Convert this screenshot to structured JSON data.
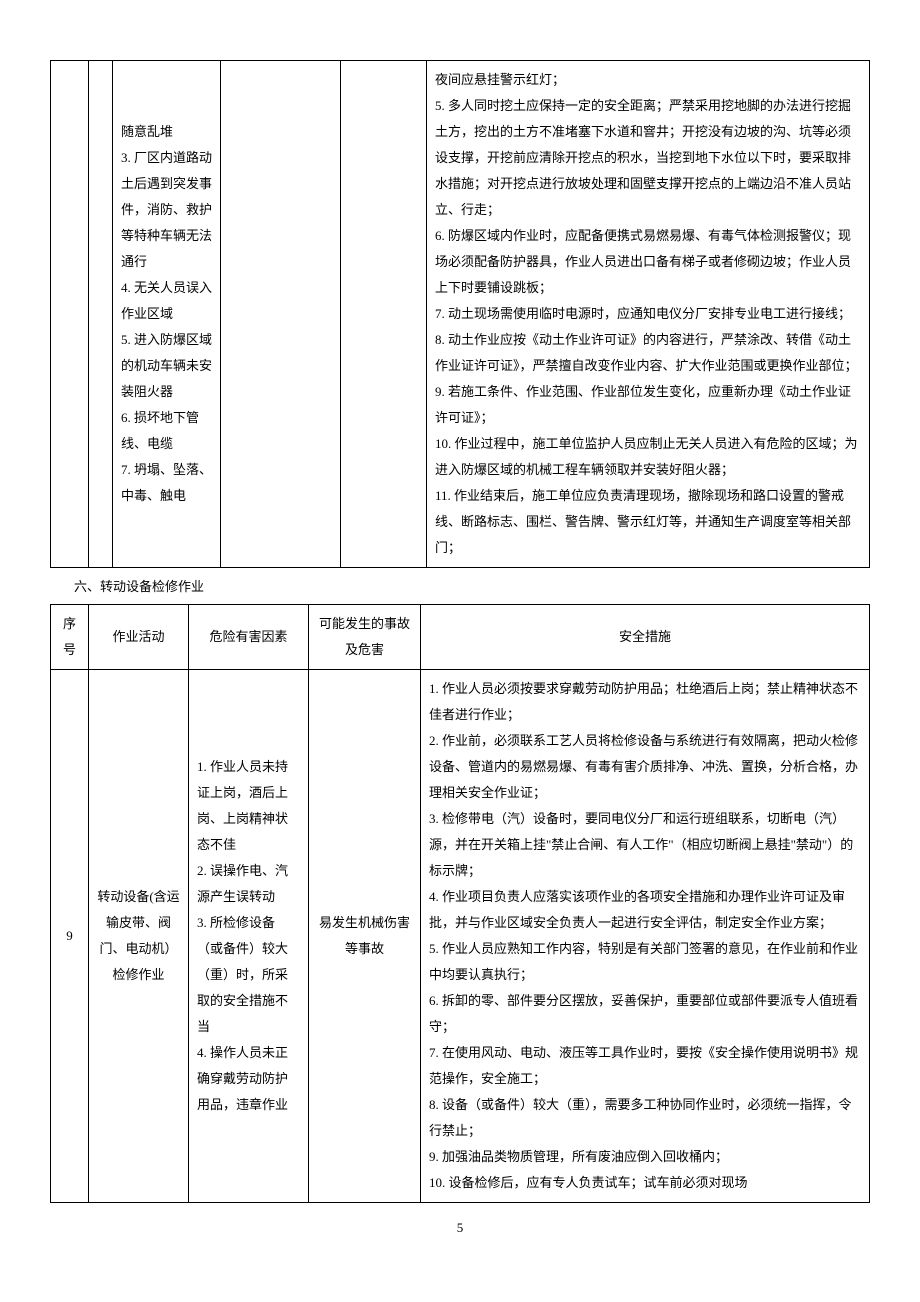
{
  "upperTable": {
    "hazards": [
      "随意乱堆",
      "3. 厂区内道路动土后遇到突发事件，消防、救护等特种车辆无法通行",
      "4. 无关人员误入作业区域",
      "5. 进入防爆区域的机动车辆未安装阻火器",
      "6. 损坏地下管线、电缆",
      "7. 坍塌、坠落、中毒、触电"
    ],
    "measures": [
      "夜间应悬挂警示红灯；",
      "5. 多人同时挖土应保持一定的安全距离；严禁采用挖地脚的办法进行挖掘土方，挖出的土方不准堵塞下水道和窨井；开挖没有边坡的沟、坑等必须设支撑，开挖前应清除开挖点的积水，当挖到地下水位以下时，要采取排水措施；对开挖点进行放坡处理和固壁支撑开挖点的上端边沿不准人员站立、行走；",
      "6. 防爆区域内作业时，应配备便携式易燃易爆、有毒气体检测报警仪；现场必须配备防护器具，作业人员进出口备有梯子或者修砌边坡；作业人员上下时要铺设跳板；",
      "7. 动土现场需使用临时电源时，应通知电仪分厂安排专业电工进行接线；",
      "8. 动土作业应按《动土作业许可证》的内容进行，严禁涂改、转借《动土作业证许可证》，严禁擅自改变作业内容、扩大作业范围或更换作业部位；",
      "9. 若施工条件、作业范围、作业部位发生变化，应重新办理《动土作业证许可证》；",
      "10. 作业过程中，施工单位监护人员应制止无关人员进入有危险的区域；为进入防爆区域的机械工程车辆领取并安装好阻火器；",
      "11. 作业结束后，施工单位应负责清理现场，撤除现场和路口设置的警戒线、断路标志、围栏、警告牌、警示红灯等，并通知生产调度室等相关部门；"
    ]
  },
  "sectionTitle": "六、转动设备检修作业",
  "lowerTable": {
    "headers": {
      "seq": "序号",
      "activity": "作业活动",
      "hazard": "危险有害因素",
      "accident": "可能发生的事故及危害",
      "measure": "安全措施"
    },
    "row": {
      "seq": "9",
      "activity": "转动设备(含运输皮带、阀门、电动机）检修作业",
      "hazards": [
        "1. 作业人员未持证上岗，酒后上岗、上岗精神状态不佳",
        "2. 误操作电、汽源产生误转动",
        "3. 所检修设备（或备件）较大（重）时，所采取的安全措施不当",
        "4. 操作人员未正确穿戴劳动防护用品，违章作业"
      ],
      "accident": "易发生机械伤害等事故",
      "measures": [
        "1. 作业人员必须按要求穿戴劳动防护用品；杜绝酒后上岗；禁止精神状态不佳者进行作业；",
        "2. 作业前，必须联系工艺人员将检修设备与系统进行有效隔离，把动火检修设备、管道内的易燃易爆、有毒有害介质排净、冲洗、置换，分析合格，办理相关安全作业证；",
        "3. 检修带电（汽）设备时，要同电仪分厂和运行班组联系，切断电（汽）源，并在开关箱上挂\"禁止合闸、有人工作\"（相应切断阀上悬挂\"禁动\"）的标示牌；",
        "4. 作业项目负责人应落实该项作业的各项安全措施和办理作业许可证及审批，并与作业区域安全负责人一起进行安全评估，制定安全作业方案；",
        "5. 作业人员应熟知工作内容，特别是有关部门签署的意见，在作业前和作业中均要认真执行；",
        "6. 拆卸的零、部件要分区摆放，妥善保护，重要部位或部件要派专人值班看守；",
        "7. 在使用风动、电动、液压等工具作业时，要按《安全操作使用说明书》规范操作，安全施工；",
        "8. 设备（或备件）较大（重），需要多工种协同作业时，必须统一指挥，令行禁止；",
        "9. 加强油品类物质管理，所有废油应倒入回收桶内；",
        "10. 设备检修后，应有专人负责试车；试车前必须对现场"
      ]
    }
  },
  "pageNumber": "5"
}
